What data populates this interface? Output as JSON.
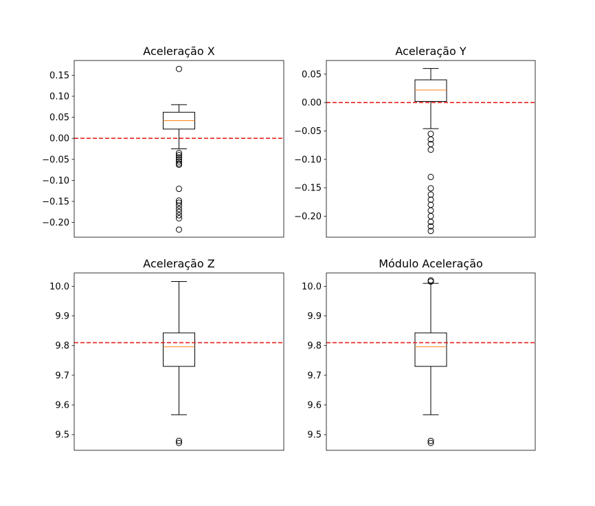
{
  "chart_data": [
    {
      "type": "box",
      "title": "Aceleração X",
      "ylim": [
        -0.235,
        0.185
      ],
      "yticks": [
        0.15,
        0.1,
        0.05,
        0.0,
        -0.05,
        -0.1,
        -0.15,
        -0.2
      ],
      "ytick_labels": [
        "0.15",
        "0.10",
        "0.05",
        "0.00",
        "−0.05",
        "−0.10",
        "−0.15",
        "−0.20"
      ],
      "box": {
        "whisker_low": -0.025,
        "q1": 0.022,
        "median": 0.042,
        "q3": 0.062,
        "whisker_high": 0.08
      },
      "outliers": [
        0.165,
        -0.035,
        -0.04,
        -0.045,
        -0.05,
        -0.055,
        -0.06,
        -0.063,
        -0.12,
        -0.148,
        -0.153,
        -0.16,
        -0.168,
        -0.175,
        -0.183,
        -0.19,
        -0.217
      ],
      "reference_line": {
        "y": 0.0,
        "color": "#e8221b",
        "style": "dashed"
      },
      "grid": false,
      "show_xticks": false
    },
    {
      "type": "box",
      "title": "Aceleração Y",
      "ylim": [
        -0.237,
        0.074
      ],
      "yticks": [
        0.05,
        0.0,
        -0.05,
        -0.1,
        -0.15,
        -0.2
      ],
      "ytick_labels": [
        "0.05",
        "0.00",
        "−0.05",
        "−0.10",
        "−0.15",
        "−0.20"
      ],
      "box": {
        "whisker_low": -0.046,
        "q1": 0.002,
        "median": 0.022,
        "q3": 0.04,
        "whisker_high": 0.06
      },
      "outliers": [
        -0.055,
        -0.065,
        -0.073,
        -0.083,
        -0.131,
        -0.151,
        -0.162,
        -0.171,
        -0.18,
        -0.19,
        -0.2,
        -0.21,
        -0.218,
        -0.226
      ],
      "reference_line": {
        "y": 0.0,
        "color": "#e8221b",
        "style": "dashed"
      },
      "grid": false,
      "show_xticks": false
    },
    {
      "type": "box",
      "title": "Aceleração Z",
      "ylim": [
        9.447,
        10.045
      ],
      "yticks": [
        10.0,
        9.9,
        9.8,
        9.7,
        9.6,
        9.5
      ],
      "ytick_labels": [
        "10.0",
        "9.9",
        "9.8",
        "9.7",
        "9.6",
        "9.5"
      ],
      "box": {
        "whisker_low": 9.567,
        "q1": 9.73,
        "median": 9.796,
        "q3": 9.843,
        "whisker_high": 10.016
      },
      "outliers": [
        9.472,
        9.479
      ],
      "reference_line": {
        "y": 9.81,
        "color": "#e8221b",
        "style": "dashed"
      },
      "grid": false,
      "show_xticks": false
    },
    {
      "type": "box",
      "title": "Módulo Aceleração",
      "ylim": [
        9.447,
        10.045
      ],
      "yticks": [
        10.0,
        9.9,
        9.8,
        9.7,
        9.6,
        9.5
      ],
      "ytick_labels": [
        "10.0",
        "9.9",
        "9.8",
        "9.7",
        "9.6",
        "9.5"
      ],
      "box": {
        "whisker_low": 9.567,
        "q1": 9.73,
        "median": 9.796,
        "q3": 9.843,
        "whisker_high": 10.01
      },
      "outliers": [
        10.016,
        10.02,
        9.472,
        9.479
      ],
      "reference_line": {
        "y": 9.81,
        "color": "#e8221b",
        "style": "dashed"
      },
      "grid": false,
      "show_xticks": false
    }
  ],
  "colors": {
    "box": "#000000",
    "median": "#ff7f0e",
    "reference": "#e8221b",
    "outlier": "#000000"
  }
}
